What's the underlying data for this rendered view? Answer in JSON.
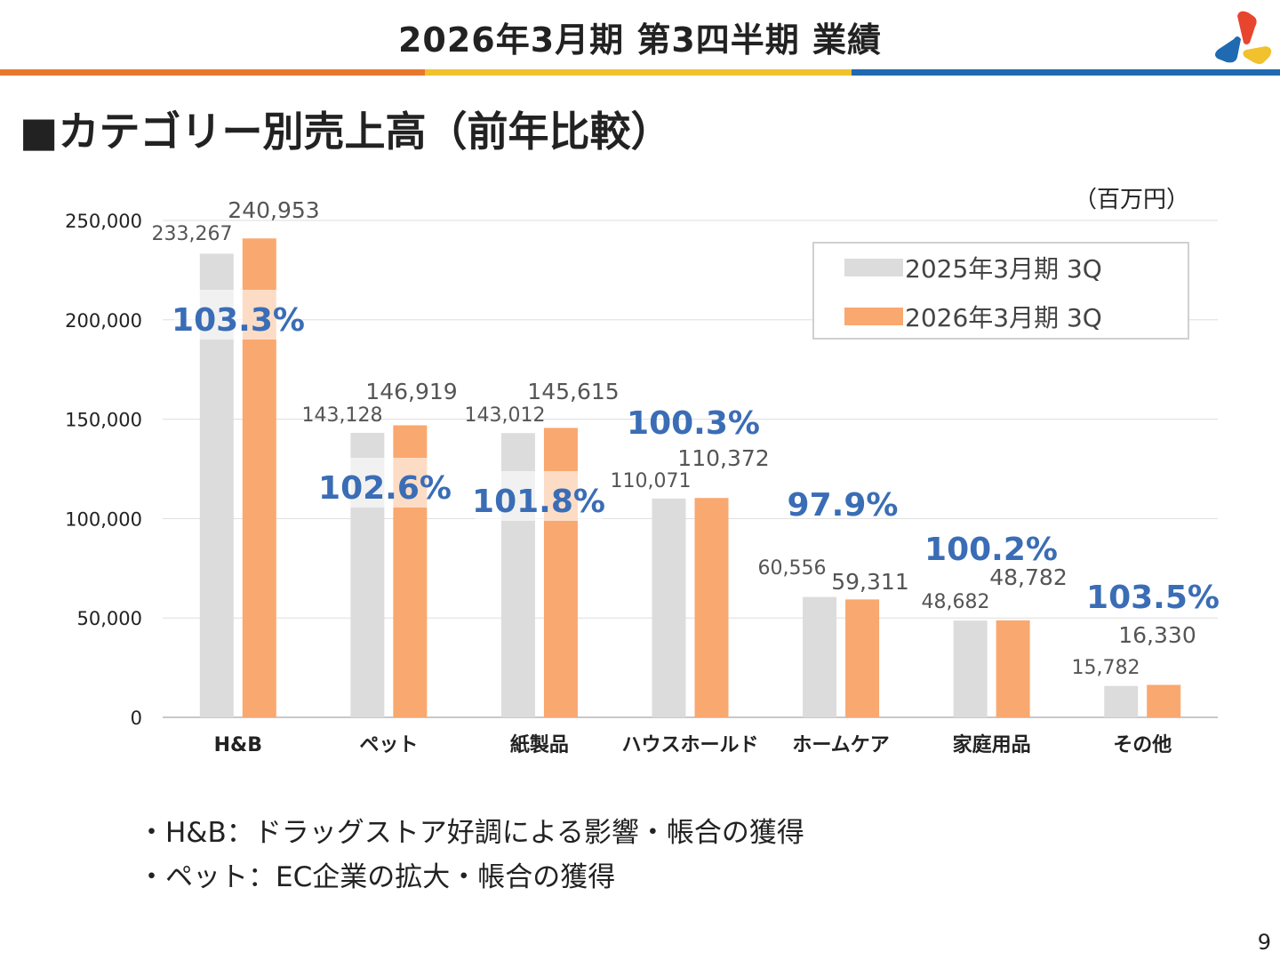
{
  "header": {
    "title": "2026年3月期 第3四半期 業績",
    "stripe_colors": [
      "#E8772E",
      "#F2C12E",
      "#1F6AB0"
    ]
  },
  "section_title": "■カテゴリー別売上高（前年比較）",
  "unit": "（百万円）",
  "chart_data": {
    "type": "bar",
    "categories": [
      "H&B",
      "ペット",
      "紙製品",
      "ハウスホールド",
      "ホームケア",
      "家庭用品",
      "その他"
    ],
    "series": [
      {
        "name": "2025年3月期 3Q",
        "color": "#DCDCDC",
        "values": [
          233267,
          143128,
          143012,
          110071,
          60556,
          48682,
          15782
        ],
        "labels": [
          "233,267",
          "143,128",
          "143,012",
          "110,071",
          "60,556",
          "48,682",
          "15,782"
        ]
      },
      {
        "name": "2026年3月期 3Q",
        "color": "#F9A870",
        "values": [
          240953,
          146919,
          145615,
          110372,
          59311,
          48782,
          16330
        ],
        "labels": [
          "240,953",
          "146,919",
          "145,615",
          "110,372",
          "59,311",
          "48,782",
          "16,330"
        ]
      }
    ],
    "yoy": [
      "103.3%",
      "102.6%",
      "101.8%",
      "100.3%",
      "97.9%",
      "100.2%",
      "103.5%"
    ],
    "yoy_color": "#3A6DB5",
    "ylim": [
      0,
      250000
    ],
    "yticks": [
      "0",
      "50,000",
      "100,000",
      "150,000",
      "200,000",
      "250,000"
    ],
    "grid": true,
    "legend": "top-right"
  },
  "bullets": [
    "・H&B：ドラッグストア好調による影響・帳合の獲得",
    "・ペット：EC企業の拡大・帳合の獲得"
  ],
  "page_number": "9"
}
